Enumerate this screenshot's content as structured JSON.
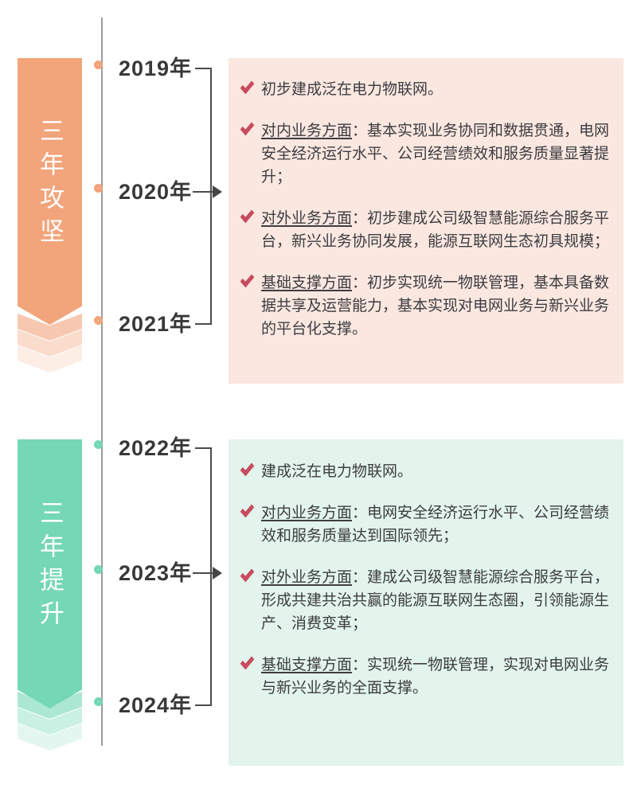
{
  "colors": {
    "phase1_accent": "#F2A47B",
    "phase2_accent": "#74D7B6",
    "phase1_panel_bg": "#FAE7E0",
    "phase2_panel_bg": "#E2F4EC",
    "check_mark": "#C84B5F",
    "axis_gray": "#9c9c9c",
    "connector_dark": "#4b4b4b",
    "text_dark": "#3d3d40"
  },
  "icons": {
    "check-icon": "✔",
    "arrow-right-icon": "▶",
    "timeline-node-icon": "○"
  },
  "phases": [
    {
      "banner_label": "三年攻坚",
      "years": [
        "2019年",
        "2020年",
        "2021年"
      ],
      "bullets": [
        {
          "lead": "",
          "text": "初步建成泛在电力物联网。"
        },
        {
          "lead": "对内业务方面",
          "text": "：基本实现业务协同和数据贯通，电网安全经济运行水平、公司经营绩效和服务质量显著提升；"
        },
        {
          "lead": "对外业务方面",
          "text": "：初步建成公司级智慧能源综合服务平台，新兴业务协同发展，能源互联网生态初具规模；"
        },
        {
          "lead": "基础支撑方面",
          "text": "：初步实现统一物联管理，基本具备数据共享及运营能力，基本实现对电网业务与新兴业务的平台化支撑。"
        }
      ]
    },
    {
      "banner_label": "三年提升",
      "years": [
        "2022年",
        "2023年",
        "2024年"
      ],
      "bullets": [
        {
          "lead": "",
          "text": "建成泛在电力物联网。"
        },
        {
          "lead": "对内业务方面",
          "text": "：电网安全经济运行水平、公司经营绩效和服务质量达到国际领先；"
        },
        {
          "lead": "对外业务方面",
          "text": "：建成公司级智慧能源综合服务平台，形成共建共治共赢的能源互联网生态圈，引领能源生产、消费变革；"
        },
        {
          "lead": "基础支撑方面",
          "text": "：实现统一物联管理，实现对电网业务与新兴业务的全面支撑。"
        }
      ]
    }
  ]
}
